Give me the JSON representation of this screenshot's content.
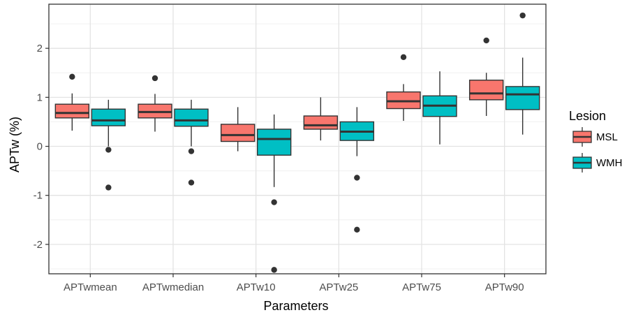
{
  "chart_data": {
    "type": "boxplot",
    "xlabel": "Parameters",
    "ylabel": "APTw (%)",
    "ylim": [
      -2.6,
      2.9
    ],
    "y_ticks": [
      -2,
      -1,
      0,
      1,
      2
    ],
    "y_tick_labels": [
      "-2",
      "-1",
      "0",
      "1",
      "2"
    ],
    "categories": [
      "APTwmean",
      "APTwmedian",
      "APTw10",
      "APTw25",
      "APTw75",
      "APTw90"
    ],
    "grid": true,
    "legend": {
      "title": "Lesion",
      "position": "right"
    },
    "series": [
      {
        "name": "MSL",
        "color": "#F8766D",
        "boxes": [
          {
            "min": 0.32,
            "q1": 0.58,
            "median": 0.68,
            "q3": 0.86,
            "max": 1.08,
            "outliers": [
              1.42
            ]
          },
          {
            "min": 0.3,
            "q1": 0.58,
            "median": 0.7,
            "q3": 0.86,
            "max": 1.07,
            "outliers": [
              1.39
            ]
          },
          {
            "min": -0.1,
            "q1": 0.1,
            "median": 0.23,
            "q3": 0.45,
            "max": 0.8,
            "outliers": []
          },
          {
            "min": 0.12,
            "q1": 0.35,
            "median": 0.43,
            "q3": 0.62,
            "max": 1.0,
            "outliers": []
          },
          {
            "min": 0.52,
            "q1": 0.77,
            "median": 0.92,
            "q3": 1.11,
            "max": 1.27,
            "outliers": [
              1.82
            ]
          },
          {
            "min": 0.62,
            "q1": 0.95,
            "median": 1.08,
            "q3": 1.35,
            "max": 1.5,
            "outliers": [
              2.16
            ]
          }
        ]
      },
      {
        "name": "WMH",
        "color": "#00BFC4",
        "boxes": [
          {
            "min": 0.0,
            "q1": 0.42,
            "median": 0.53,
            "q3": 0.76,
            "max": 0.95,
            "outliers": [
              -0.07,
              -0.84
            ]
          },
          {
            "min": 0.0,
            "q1": 0.41,
            "median": 0.53,
            "q3": 0.76,
            "max": 0.95,
            "outliers": [
              -0.1,
              -0.74
            ]
          },
          {
            "min": -0.83,
            "q1": -0.18,
            "median": 0.15,
            "q3": 0.35,
            "max": 0.65,
            "outliers": [
              -1.14,
              -2.52
            ]
          },
          {
            "min": -0.2,
            "q1": 0.12,
            "median": 0.3,
            "q3": 0.5,
            "max": 0.8,
            "outliers": [
              -0.64,
              -1.7
            ]
          },
          {
            "min": 0.04,
            "q1": 0.61,
            "median": 0.83,
            "q3": 1.03,
            "max": 1.53,
            "outliers": []
          },
          {
            "min": 0.24,
            "q1": 0.75,
            "median": 1.06,
            "q3": 1.22,
            "max": 1.81,
            "outliers": [
              2.67
            ]
          }
        ]
      }
    ]
  }
}
